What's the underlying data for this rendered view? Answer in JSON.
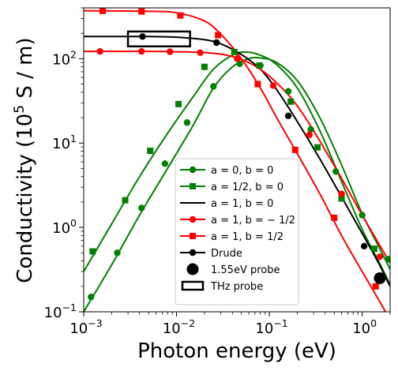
{
  "chart_data": {
    "type": "line",
    "xlabel": "Photon energy (eV)",
    "ylabel_prefix": "Conductivity (10",
    "ylabel_exp": "5",
    "ylabel_suffix": " S / m)",
    "xscale": "log",
    "yscale": "log",
    "xlim": [
      0.001,
      2.0
    ],
    "ylim": [
      0.1,
      400
    ],
    "x_tick_labels": [
      {
        "base": "10",
        "exp": "−3",
        "value": 0.001
      },
      {
        "base": "10",
        "exp": "−2",
        "value": 0.01
      },
      {
        "base": "10",
        "exp": "−1",
        "value": 0.1
      },
      {
        "base": "10",
        "exp": "0",
        "value": 1
      }
    ],
    "y_tick_labels": [
      {
        "base": "10",
        "exp": "−1",
        "value": 0.1
      },
      {
        "base": "10",
        "exp": "0",
        "value": 1
      },
      {
        "base": "10",
        "exp": "1",
        "value": 10
      },
      {
        "base": "10",
        "exp": "2",
        "value": 100
      }
    ],
    "legend_position": "lower-center",
    "series": [
      {
        "name": "a = 0, b = 0",
        "color": "#008000",
        "marker": "circle",
        "curve": [
          [
            0.001,
            0.1
          ],
          [
            0.002,
            0.36
          ],
          [
            0.004,
            1.4
          ],
          [
            0.008,
            5.0
          ],
          [
            0.015,
            16
          ],
          [
            0.025,
            45
          ],
          [
            0.04,
            80
          ],
          [
            0.06,
            100
          ],
          [
            0.08,
            102
          ],
          [
            0.12,
            90
          ],
          [
            0.2,
            55
          ],
          [
            0.35,
            20
          ],
          [
            0.6,
            5.5
          ],
          [
            1.0,
            1.45
          ],
          [
            1.5,
            0.6
          ],
          [
            2.0,
            0.32
          ]
        ],
        "markers": [
          [
            0.0012,
            0.15
          ],
          [
            0.0023,
            0.5
          ],
          [
            0.0042,
            1.7
          ],
          [
            0.0075,
            5.7
          ],
          [
            0.013,
            17.5
          ],
          [
            0.025,
            47
          ],
          [
            0.048,
            87
          ],
          [
            0.08,
            83
          ],
          [
            0.16,
            41
          ],
          [
            0.28,
            14.5
          ],
          [
            0.52,
            4.6
          ],
          [
            1.0,
            1.4
          ],
          [
            1.9,
            0.42
          ]
        ]
      },
      {
        "name": "a = 1/2, b = 0",
        "color": "#008000",
        "marker": "square",
        "curve": [
          [
            0.001,
            0.3
          ],
          [
            0.002,
            1.1
          ],
          [
            0.004,
            4.0
          ],
          [
            0.008,
            13
          ],
          [
            0.015,
            35
          ],
          [
            0.025,
            75
          ],
          [
            0.04,
            110
          ],
          [
            0.055,
            120
          ],
          [
            0.08,
            110
          ],
          [
            0.12,
            85
          ],
          [
            0.2,
            45
          ],
          [
            0.35,
            14
          ],
          [
            0.6,
            3.5
          ],
          [
            1.0,
            0.95
          ],
          [
            1.5,
            0.4
          ],
          [
            2.0,
            0.21
          ]
        ],
        "markers": [
          [
            0.00125,
            0.52
          ],
          [
            0.0028,
            2.1
          ],
          [
            0.0052,
            8.1
          ],
          [
            0.0105,
            29
          ],
          [
            0.02,
            80
          ],
          [
            0.042,
            120
          ],
          [
            0.078,
            83
          ],
          [
            0.17,
            31
          ],
          [
            0.33,
            8.9
          ],
          [
            0.6,
            2.2
          ],
          [
            1.35,
            0.56
          ]
        ]
      },
      {
        "name": "a = 1, b = 0",
        "color": "#000000",
        "marker": "none",
        "curve": [
          [
            0.001,
            183
          ],
          [
            0.005,
            183
          ],
          [
            0.01,
            180
          ],
          [
            0.02,
            168
          ],
          [
            0.03,
            150
          ],
          [
            0.05,
            112
          ],
          [
            0.08,
            75
          ],
          [
            0.12,
            43
          ],
          [
            0.2,
            18
          ],
          [
            0.35,
            6.5
          ],
          [
            0.6,
            2.3
          ],
          [
            1.0,
            0.85
          ],
          [
            1.5,
            0.38
          ],
          [
            2.0,
            0.2
          ]
        ],
        "markers": []
      },
      {
        "name": "a = 1, b = − 1/2",
        "color": "#ff0000",
        "marker": "circle",
        "curve": [
          [
            0.001,
            122
          ],
          [
            0.005,
            122
          ],
          [
            0.01,
            121
          ],
          [
            0.02,
            118
          ],
          [
            0.035,
            110
          ],
          [
            0.06,
            90
          ],
          [
            0.1,
            62
          ],
          [
            0.18,
            32
          ],
          [
            0.3,
            14
          ],
          [
            0.55,
            4.5
          ],
          [
            1.0,
            1.4
          ],
          [
            1.5,
            0.65
          ],
          [
            2.0,
            0.38
          ]
        ],
        "markers": [
          [
            0.0015,
            122
          ],
          [
            0.0042,
            122
          ],
          [
            0.0085,
            121
          ],
          [
            0.018,
            118
          ],
          [
            0.045,
            100
          ],
          [
            0.11,
            48
          ],
          [
            0.27,
            12.5
          ],
          [
            0.6,
            2.5
          ],
          [
            1.55,
            0.45
          ]
        ]
      },
      {
        "name": "a = 1, b = 1/2",
        "color": "#ff0000",
        "marker": "square",
        "curve": [
          [
            0.001,
            370
          ],
          [
            0.005,
            365
          ],
          [
            0.01,
            350
          ],
          [
            0.02,
            280
          ],
          [
            0.03,
            195
          ],
          [
            0.05,
            100
          ],
          [
            0.08,
            45
          ],
          [
            0.12,
            20
          ],
          [
            0.2,
            7.5
          ],
          [
            0.35,
            2.5
          ],
          [
            0.6,
            0.8
          ],
          [
            1.0,
            0.3
          ],
          [
            1.5,
            0.14
          ],
          [
            2.0,
            0.08
          ]
        ],
        "markers": [
          [
            0.0016,
            368
          ],
          [
            0.0042,
            362
          ],
          [
            0.011,
            325
          ],
          [
            0.028,
            190
          ],
          [
            0.075,
            50
          ],
          [
            0.19,
            8.3
          ],
          [
            0.5,
            1.3
          ],
          [
            1.4,
            0.2
          ]
        ]
      },
      {
        "name": "Drude",
        "color": "#000000",
        "marker": "circle",
        "curve": [],
        "markers": [
          [
            0.0043,
            183
          ],
          [
            0.027,
            155
          ],
          [
            0.16,
            21
          ],
          [
            1.05,
            0.6
          ]
        ]
      }
    ],
    "annotations": [
      {
        "name": "1.55eV probe",
        "kind": "large-circle",
        "x": 1.55,
        "y": 0.25,
        "color": "#000000"
      },
      {
        "name": "THz probe",
        "kind": "rectangle",
        "x_range": [
          0.003,
          0.014
        ],
        "y_range": [
          140,
          210
        ],
        "color": "#000000"
      }
    ],
    "legend": [
      {
        "label": "a = 0, b = 0",
        "series": 0
      },
      {
        "label": "a = 1/2, b = 0",
        "series": 1
      },
      {
        "label": "a = 1, b = 0",
        "series": 2
      },
      {
        "label": "a = 1, b = − 1/2",
        "series": 3
      },
      {
        "label": "a = 1, b = 1/2",
        "series": 4
      },
      {
        "label": "Drude",
        "series": 5
      },
      {
        "label": "1.55eV probe",
        "annotation": 0
      },
      {
        "label": "THz probe",
        "annotation": 1
      }
    ]
  }
}
